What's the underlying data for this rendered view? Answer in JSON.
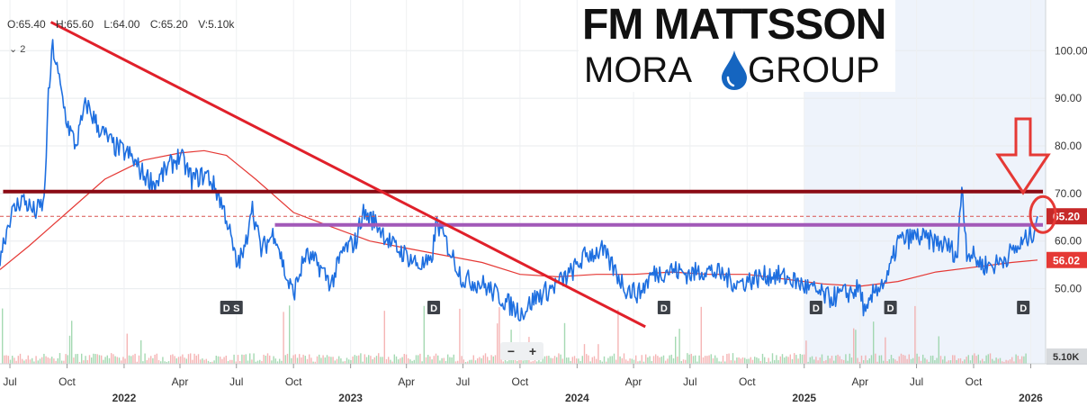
{
  "ohlc": {
    "open": "O:65.40",
    "high": "H:65.60",
    "low": "L:64.00",
    "close": "C:65.20",
    "volume": "V:5.10k"
  },
  "study_toggle": "⌄ 2",
  "logo": {
    "line1": "FM MATTSSON",
    "line2a": "MORA",
    "line2b": "GROUP",
    "drop_color": "#1565c0"
  },
  "zoom": {
    "minus": "−",
    "plus": "+"
  },
  "colors": {
    "price": "#1e6fe0",
    "ma": "#e53935",
    "resistance": "#8b0a14",
    "support": "#a259b8",
    "trend": "#e0202a",
    "arrow": "#e53935",
    "highlight": "#eef3fb",
    "volume_up": "#8fcf9f",
    "volume_down": "#f2a3a3"
  },
  "chart_data": {
    "type": "line",
    "title": "",
    "xlabel": "",
    "ylabel": "",
    "ylim": [
      38,
      108
    ],
    "xlim": [
      "2021-06-15",
      "2026-01-25"
    ],
    "y_ticks": [
      "100.00",
      "90.00",
      "80.00",
      "70.00",
      "60.00",
      "50.00"
    ],
    "y_tick_values": [
      100,
      90,
      80,
      70,
      60,
      50
    ],
    "x_ticks": [
      {
        "date": "2021-07-01",
        "label": "Jul",
        "year": ""
      },
      {
        "date": "2021-10-01",
        "label": "Oct",
        "year": ""
      },
      {
        "date": "2022-01-01",
        "label": "",
        "year": "2022"
      },
      {
        "date": "2022-04-01",
        "label": "Apr",
        "year": ""
      },
      {
        "date": "2022-07-01",
        "label": "Jul",
        "year": ""
      },
      {
        "date": "2022-10-01",
        "label": "Oct",
        "year": ""
      },
      {
        "date": "2023-01-01",
        "label": "",
        "year": "2023"
      },
      {
        "date": "2023-04-01",
        "label": "Apr",
        "year": ""
      },
      {
        "date": "2023-07-01",
        "label": "Jul",
        "year": ""
      },
      {
        "date": "2023-10-01",
        "label": "Oct",
        "year": ""
      },
      {
        "date": "2024-01-01",
        "label": "",
        "year": "2024"
      },
      {
        "date": "2024-04-01",
        "label": "Apr",
        "year": ""
      },
      {
        "date": "2024-07-01",
        "label": "Jul",
        "year": ""
      },
      {
        "date": "2024-10-01",
        "label": "Oct",
        "year": ""
      },
      {
        "date": "2025-01-01",
        "label": "",
        "year": "2025"
      },
      {
        "date": "2025-04-01",
        "label": "Apr",
        "year": ""
      },
      {
        "date": "2025-07-01",
        "label": "Jul",
        "year": ""
      },
      {
        "date": "2025-10-01",
        "label": "Oct",
        "year": ""
      },
      {
        "date": "2026-01-01",
        "label": "",
        "year": "2026"
      }
    ],
    "price_series": {
      "name": "",
      "points": [
        [
          "2021-06-15",
          57
        ],
        [
          "2021-07-01",
          65
        ],
        [
          "2021-07-20",
          69
        ],
        [
          "2021-08-10",
          66
        ],
        [
          "2021-08-25",
          68
        ],
        [
          "2021-09-01",
          90
        ],
        [
          "2021-09-08",
          101
        ],
        [
          "2021-09-15",
          96
        ],
        [
          "2021-10-01",
          85
        ],
        [
          "2021-10-15",
          80
        ],
        [
          "2021-11-01",
          89
        ],
        [
          "2021-11-20",
          84
        ],
        [
          "2021-12-15",
          80
        ],
        [
          "2022-01-10",
          78
        ],
        [
          "2022-02-01",
          74
        ],
        [
          "2022-02-20",
          72
        ],
        [
          "2022-03-10",
          75
        ],
        [
          "2022-04-01",
          78
        ],
        [
          "2022-04-20",
          73
        ],
        [
          "2022-05-15",
          74
        ],
        [
          "2022-06-01",
          70
        ],
        [
          "2022-06-15",
          65
        ],
        [
          "2022-07-01",
          55
        ],
        [
          "2022-07-15",
          58
        ],
        [
          "2022-07-25",
          68
        ],
        [
          "2022-08-10",
          58
        ],
        [
          "2022-09-01",
          62
        ],
        [
          "2022-09-20",
          52
        ],
        [
          "2022-10-01",
          49
        ],
        [
          "2022-10-20",
          57
        ],
        [
          "2022-11-10",
          55
        ],
        [
          "2022-12-01",
          51
        ],
        [
          "2022-12-20",
          58
        ],
        [
          "2023-01-10",
          60
        ],
        [
          "2023-01-20",
          66
        ],
        [
          "2023-02-10",
          64
        ],
        [
          "2023-03-10",
          59
        ],
        [
          "2023-04-01",
          57
        ],
        [
          "2023-04-20",
          55
        ],
        [
          "2023-05-10",
          55
        ],
        [
          "2023-05-20",
          64
        ],
        [
          "2023-06-10",
          58
        ],
        [
          "2023-07-01",
          52
        ],
        [
          "2023-08-01",
          51
        ],
        [
          "2023-09-01",
          48
        ],
        [
          "2023-09-20",
          46
        ],
        [
          "2023-10-05",
          45
        ],
        [
          "2023-10-25",
          48
        ],
        [
          "2023-11-20",
          50
        ],
        [
          "2023-12-20",
          53
        ],
        [
          "2024-01-15",
          57
        ],
        [
          "2024-02-10",
          58
        ],
        [
          "2024-03-01",
          54
        ],
        [
          "2024-03-20",
          50
        ],
        [
          "2024-04-10",
          49
        ],
        [
          "2024-05-01",
          53
        ],
        [
          "2024-06-01",
          54
        ],
        [
          "2024-07-01",
          53
        ],
        [
          "2024-07-25",
          54
        ],
        [
          "2024-08-20",
          53
        ],
        [
          "2024-09-15",
          51
        ],
        [
          "2024-10-10",
          52
        ],
        [
          "2024-11-10",
          53
        ],
        [
          "2024-12-10",
          52
        ],
        [
          "2025-01-10",
          50
        ],
        [
          "2025-02-10",
          48
        ],
        [
          "2025-03-10",
          49
        ],
        [
          "2025-04-01",
          50
        ],
        [
          "2025-04-10",
          44
        ],
        [
          "2025-04-25",
          50
        ],
        [
          "2025-05-15",
          52
        ],
        [
          "2025-06-01",
          60
        ],
        [
          "2025-07-01",
          61
        ],
        [
          "2025-07-25",
          60
        ],
        [
          "2025-08-20",
          59
        ],
        [
          "2025-09-05",
          57
        ],
        [
          "2025-09-12",
          72
        ],
        [
          "2025-09-20",
          58
        ],
        [
          "2025-10-15",
          55
        ],
        [
          "2025-11-05",
          55
        ],
        [
          "2025-11-25",
          57
        ],
        [
          "2025-12-15",
          59
        ],
        [
          "2026-01-05",
          62
        ],
        [
          "2026-01-12",
          65.2
        ]
      ]
    },
    "moving_average": {
      "name": "",
      "points": [
        [
          "2021-06-15",
          54
        ],
        [
          "2021-08-01",
          59
        ],
        [
          "2021-10-01",
          66
        ],
        [
          "2021-12-01",
          73
        ],
        [
          "2022-02-01",
          77
        ],
        [
          "2022-04-01",
          78.5
        ],
        [
          "2022-05-10",
          79
        ],
        [
          "2022-06-15",
          78
        ],
        [
          "2022-08-01",
          73
        ],
        [
          "2022-10-01",
          66
        ],
        [
          "2022-12-01",
          63
        ],
        [
          "2023-02-01",
          60
        ],
        [
          "2023-04-01",
          58.5
        ],
        [
          "2023-06-01",
          57
        ],
        [
          "2023-08-01",
          55.5
        ],
        [
          "2023-10-01",
          53
        ],
        [
          "2023-12-01",
          52.5
        ],
        [
          "2024-02-01",
          53
        ],
        [
          "2024-04-01",
          53
        ],
        [
          "2024-06-01",
          53.5
        ],
        [
          "2024-08-01",
          53
        ],
        [
          "2024-10-01",
          53
        ],
        [
          "2024-12-01",
          52
        ],
        [
          "2025-02-01",
          51
        ],
        [
          "2025-04-01",
          50.5
        ],
        [
          "2025-06-01",
          51.5
        ],
        [
          "2025-08-01",
          53.5
        ],
        [
          "2025-10-01",
          54.5
        ],
        [
          "2025-12-01",
          55.5
        ],
        [
          "2026-01-12",
          56.02
        ]
      ]
    },
    "price_labels": [
      {
        "value": 65.2,
        "text": "65.20",
        "color": "#c62828"
      },
      {
        "value": 56.02,
        "text": "56.02",
        "color": "#e53935"
      }
    ],
    "volume_label": "5.10K",
    "horizontal_lines": [
      {
        "value": 70.4,
        "from": "2021-06-20",
        "to": "2026-01-12",
        "role": "resistance"
      },
      {
        "value": 63.4,
        "from": "2022-09-01",
        "to": "2026-01-12",
        "role": "support"
      }
    ],
    "current_price_line": 65.2,
    "trendline": {
      "from": [
        "2021-09-05",
        106
      ],
      "to": [
        "2024-04-20",
        42
      ]
    },
    "highlight_range": [
      "2025-01-01",
      "2026-01-25"
    ],
    "dividend_markers": [
      {
        "date": "2022-06-15",
        "text": "D"
      },
      {
        "date": "2022-07-01",
        "text": "S"
      },
      {
        "date": "2023-05-15",
        "text": "D"
      },
      {
        "date": "2024-05-20",
        "text": "D"
      },
      {
        "date": "2025-01-20",
        "text": "D"
      },
      {
        "date": "2025-05-20",
        "text": "D"
      },
      {
        "date": "2025-12-20",
        "text": "D"
      }
    ],
    "grid": true
  }
}
